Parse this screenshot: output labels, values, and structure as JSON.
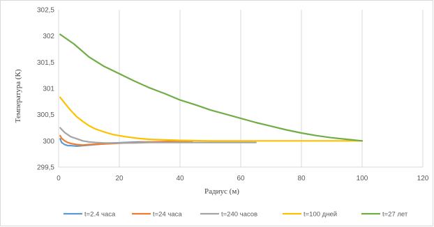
{
  "chart_data": {
    "type": "line",
    "title": "",
    "xlabel": "Радиус (м)",
    "ylabel": "Температура (К)",
    "xlim": [
      0,
      120
    ],
    "ylim": [
      299.5,
      302.5
    ],
    "x_ticks": [
      0,
      20,
      40,
      60,
      80,
      100,
      120
    ],
    "y_ticks": [
      299.5,
      300,
      300.5,
      301,
      301.5,
      302,
      302.5
    ],
    "y_tick_labels": [
      "299,5",
      "300",
      "300,5",
      "301",
      "301,5",
      "302",
      "302,5"
    ],
    "grid": "vertical",
    "legend_position": "bottom",
    "series": [
      {
        "name": "t=2.4 часа",
        "color": "#5b9bd5",
        "points": [
          [
            0.5,
            300.04
          ],
          [
            1,
            299.97
          ],
          [
            2,
            299.93
          ],
          [
            3,
            299.91
          ],
          [
            4,
            299.91
          ],
          [
            6,
            299.9
          ],
          [
            8,
            299.91
          ],
          [
            10,
            299.92
          ],
          [
            14,
            299.94
          ],
          [
            18,
            299.96
          ],
          [
            22,
            299.97
          ],
          [
            26,
            299.98
          ],
          [
            30,
            299.98
          ]
        ]
      },
      {
        "name": "t=24 часа",
        "color": "#ed7d31",
        "points": [
          [
            0.5,
            300.1
          ],
          [
            1,
            300.05
          ],
          [
            2,
            300.0
          ],
          [
            3,
            299.97
          ],
          [
            4,
            299.95
          ],
          [
            6,
            299.93
          ],
          [
            8,
            299.92
          ],
          [
            10,
            299.93
          ],
          [
            14,
            299.94
          ],
          [
            18,
            299.95
          ],
          [
            22,
            299.96
          ],
          [
            26,
            299.97
          ],
          [
            30,
            299.98
          ],
          [
            36,
            299.99
          ],
          [
            44,
            299.99
          ]
        ]
      },
      {
        "name": "t=240 часов",
        "color": "#a5a5a5",
        "points": [
          [
            0.5,
            300.25
          ],
          [
            1,
            300.22
          ],
          [
            2,
            300.16
          ],
          [
            4,
            300.08
          ],
          [
            6,
            300.04
          ],
          [
            8,
            300.0
          ],
          [
            10,
            299.98
          ],
          [
            12,
            299.97
          ],
          [
            15,
            299.96
          ],
          [
            20,
            299.96
          ],
          [
            25,
            299.96
          ],
          [
            30,
            299.97
          ],
          [
            40,
            299.97
          ],
          [
            50,
            299.97
          ],
          [
            60,
            299.97
          ],
          [
            65,
            299.97
          ]
        ]
      },
      {
        "name": "t=100 дней",
        "color": "#ffc000",
        "points": [
          [
            0.5,
            300.83
          ],
          [
            2,
            300.72
          ],
          [
            4,
            300.58
          ],
          [
            6,
            300.46
          ],
          [
            8,
            300.37
          ],
          [
            10,
            300.29
          ],
          [
            12,
            300.23
          ],
          [
            15,
            300.17
          ],
          [
            18,
            300.12
          ],
          [
            22,
            300.08
          ],
          [
            26,
            300.05
          ],
          [
            30,
            300.03
          ],
          [
            35,
            300.02
          ],
          [
            40,
            300.01
          ],
          [
            50,
            300.0
          ],
          [
            60,
            300.0
          ],
          [
            70,
            300.0
          ],
          [
            80,
            300.0
          ],
          [
            92,
            300.0
          ],
          [
            100,
            300.0
          ]
        ]
      },
      {
        "name": "t=27 лет",
        "color": "#70ad47",
        "points": [
          [
            0.5,
            302.03
          ],
          [
            5,
            301.85
          ],
          [
            10,
            301.6
          ],
          [
            15,
            301.42
          ],
          [
            20,
            301.28
          ],
          [
            25,
            301.14
          ],
          [
            30,
            301.01
          ],
          [
            35,
            300.9
          ],
          [
            40,
            300.78
          ],
          [
            45,
            300.69
          ],
          [
            50,
            300.59
          ],
          [
            55,
            300.51
          ],
          [
            60,
            300.43
          ],
          [
            65,
            300.35
          ],
          [
            70,
            300.28
          ],
          [
            75,
            300.21
          ],
          [
            80,
            300.15
          ],
          [
            85,
            300.1
          ],
          [
            90,
            300.06
          ],
          [
            95,
            300.03
          ],
          [
            100,
            300.0
          ]
        ]
      }
    ]
  }
}
